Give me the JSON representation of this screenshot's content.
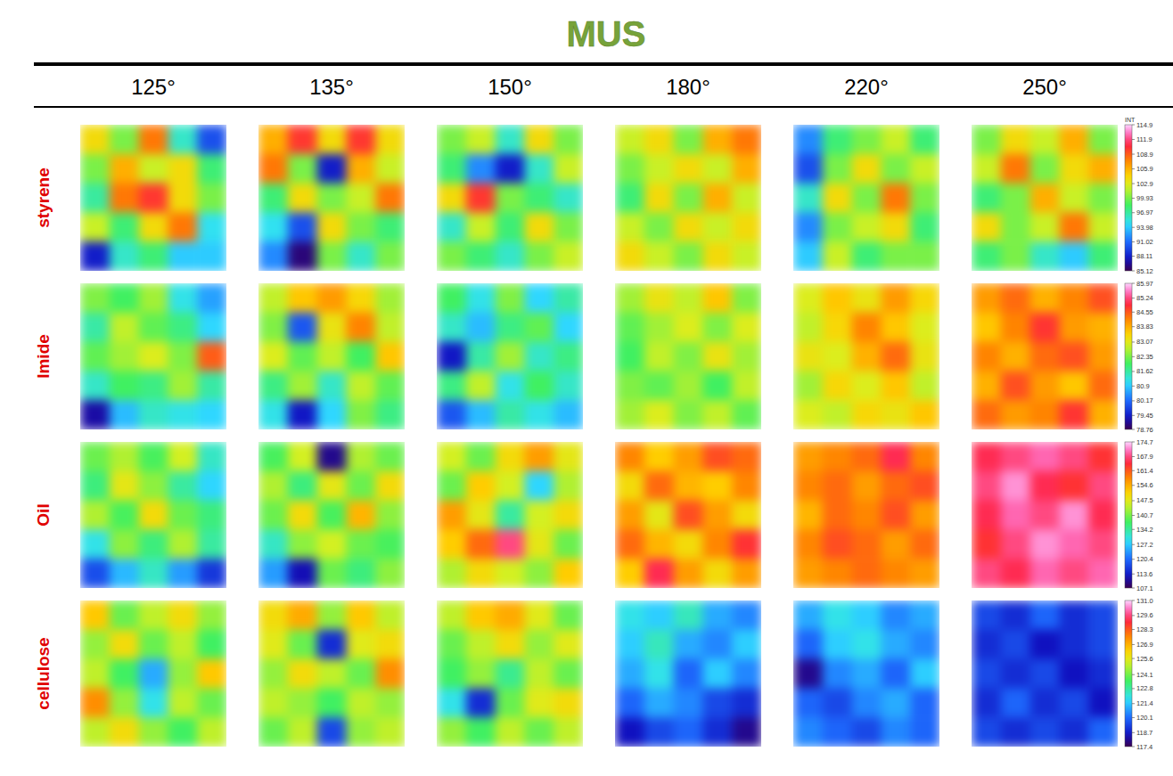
{
  "chart_data": {
    "type": "heatmap",
    "title": "MUS",
    "columns": [
      "125°",
      "135°",
      "150°",
      "180°",
      "220°",
      "250°"
    ],
    "rows": [
      {
        "name": "styrene",
        "colorbar": {
          "label": "INT",
          "range": [
            85.12,
            114.9
          ],
          "ticks": [
            114.9,
            111.9,
            108.9,
            105.9,
            102.9,
            99.93,
            96.97,
            93.98,
            91.02,
            88.11,
            85.12
          ]
        },
        "cells": [
          [
            [
              104,
              100,
              108,
              96,
              90
            ],
            [
              100,
              106,
              102,
              104,
              98
            ],
            [
              97,
              108,
              110,
              104,
              100
            ],
            [
              102,
              98,
              104,
              108,
              95
            ],
            [
              88,
              96,
              98,
              94,
              94
            ]
          ],
          [
            [
              106,
              110,
              104,
              110,
              104
            ],
            [
              108,
              100,
              88,
              106,
              102
            ],
            [
              98,
              104,
              100,
              102,
              108
            ],
            [
              95,
              90,
              104,
              100,
              98
            ],
            [
              92,
              86,
              100,
              96,
              100
            ]
          ],
          [
            [
              100,
              102,
              96,
              104,
              100
            ],
            [
              98,
              92,
              88,
              96,
              102
            ],
            [
              104,
              110,
              100,
              98,
              96
            ],
            [
              96,
              102,
              98,
              104,
              100
            ],
            [
              100,
              98,
              96,
              100,
              102
            ]
          ],
          [
            [
              102,
              104,
              100,
              106,
              108
            ],
            [
              100,
              102,
              104,
              102,
              106
            ],
            [
              98,
              104,
              100,
              106,
              102
            ],
            [
              102,
              100,
              104,
              102,
              104
            ],
            [
              104,
              102,
              100,
              104,
              102
            ]
          ],
          [
            [
              92,
              98,
              100,
              102,
              98
            ],
            [
              90,
              100,
              104,
              100,
              102
            ],
            [
              96,
              104,
              100,
              108,
              100
            ],
            [
              92,
              100,
              102,
              104,
              98
            ],
            [
              94,
              102,
              98,
              100,
              100
            ]
          ],
          [
            [
              100,
              104,
              102,
              106,
              100
            ],
            [
              102,
              108,
              100,
              104,
              106
            ],
            [
              98,
              100,
              106,
              102,
              100
            ],
            [
              104,
              100,
              102,
              108,
              102
            ],
            [
              98,
              100,
              96,
              94,
              98
            ]
          ]
        ]
      },
      {
        "name": "Imide",
        "colorbar": {
          "range": [
            78.76,
            85.97
          ],
          "ticks": [
            85.97,
            85.24,
            84.55,
            83.83,
            83.07,
            82.35,
            81.62,
            80.9,
            80.17,
            79.45,
            78.76
          ]
        },
        "cells": [
          [
            [
              82.4,
              82.0,
              82.6,
              81.2,
              80.6
            ],
            [
              81.6,
              82.8,
              82.2,
              81.8,
              81.0
            ],
            [
              82.2,
              82.6,
              83.0,
              82.4,
              84.5
            ],
            [
              81.4,
              82.0,
              81.8,
              82.6,
              81.6
            ],
            [
              79.2,
              80.8,
              81.4,
              81.2,
              81.0
            ]
          ],
          [
            [
              82.8,
              83.6,
              84.0,
              83.4,
              82.6
            ],
            [
              82.4,
              80.0,
              83.2,
              84.2,
              82.8
            ],
            [
              83.0,
              82.2,
              82.8,
              82.0,
              83.6
            ],
            [
              81.8,
              82.6,
              81.4,
              82.8,
              82.2
            ],
            [
              81.2,
              79.4,
              81.0,
              82.4,
              81.8
            ]
          ],
          [
            [
              82.0,
              81.2,
              82.4,
              81.0,
              81.6
            ],
            [
              81.4,
              80.8,
              81.8,
              82.2,
              81.0
            ],
            [
              79.4,
              81.6,
              82.6,
              81.4,
              81.8
            ],
            [
              81.8,
              82.8,
              81.2,
              82.0,
              81.4
            ],
            [
              80.0,
              80.8,
              81.6,
              81.2,
              80.8
            ]
          ],
          [
            [
              82.6,
              83.2,
              82.8,
              83.6,
              82.4
            ],
            [
              82.2,
              82.6,
              83.0,
              82.4,
              83.0
            ],
            [
              82.0,
              82.8,
              82.4,
              83.2,
              82.6
            ],
            [
              82.4,
              82.2,
              82.6,
              82.0,
              82.8
            ],
            [
              82.6,
              83.0,
              82.4,
              82.8,
              82.2
            ]
          ],
          [
            [
              83.0,
              83.6,
              83.2,
              84.0,
              83.4
            ],
            [
              82.8,
              83.4,
              84.2,
              83.6,
              83.0
            ],
            [
              83.2,
              83.0,
              83.8,
              84.4,
              83.2
            ],
            [
              82.6,
              83.4,
              83.0,
              83.6,
              82.8
            ],
            [
              83.0,
              82.8,
              83.4,
              83.2,
              83.6
            ]
          ],
          [
            [
              84.0,
              84.4,
              83.8,
              84.2,
              84.6
            ],
            [
              83.6,
              84.2,
              84.8,
              84.0,
              83.8
            ],
            [
              84.2,
              83.8,
              84.4,
              84.6,
              84.0
            ],
            [
              83.8,
              84.6,
              84.0,
              83.6,
              84.4
            ],
            [
              84.4,
              84.0,
              84.2,
              84.8,
              83.8
            ]
          ]
        ]
      },
      {
        "name": "Oil",
        "colorbar": {
          "range": [
            107.1,
            174.7
          ],
          "ticks": [
            174.7,
            167.9,
            161.4,
            154.6,
            147.5,
            140.7,
            134.2,
            127.2,
            120.4,
            113.6,
            107.1
          ]
        },
        "cells": [
          [
            [
              140,
              144,
              138,
              146,
              132
            ],
            [
              136,
              148,
              142,
              134,
              128
            ],
            [
              144,
              138,
              150,
              140,
              136
            ],
            [
              130,
              142,
              136,
              144,
              134
            ],
            [
              118,
              126,
              132,
              124,
              116
            ]
          ],
          [
            [
              138,
              146,
              110,
              144,
              140
            ],
            [
              144,
              136,
              148,
              140,
              150
            ],
            [
              140,
              150,
              138,
              154,
              142
            ],
            [
              132,
              142,
              146,
              140,
              138
            ],
            [
              124,
              112,
              140,
              136,
              142
            ]
          ],
          [
            [
              146,
              140,
              150,
              156,
              148
            ],
            [
              140,
              152,
              146,
              128,
              144
            ],
            [
              156,
              148,
              134,
              146,
              150
            ],
            [
              152,
              160,
              168,
              148,
              140
            ],
            [
              144,
              150,
              146,
              142,
              152
            ]
          ],
          [
            [
              158,
              152,
              156,
              162,
              160
            ],
            [
              150,
              160,
              154,
              152,
              158
            ],
            [
              156,
              148,
              162,
              156,
              150
            ],
            [
              160,
              154,
              150,
              158,
              164
            ],
            [
              152,
              166,
              156,
              150,
              156
            ]
          ],
          [
            [
              156,
              158,
              160,
              166,
              158
            ],
            [
              158,
              160,
              156,
              160,
              162
            ],
            [
              154,
              160,
              158,
              162,
              156
            ],
            [
              158,
              162,
              160,
              156,
              160
            ],
            [
              156,
              158,
              160,
              158,
              156
            ]
          ],
          [
            [
              166,
              168,
              170,
              168,
              164
            ],
            [
              168,
              172,
              166,
              164,
              168
            ],
            [
              166,
              170,
              168,
              172,
              166
            ],
            [
              164,
              168,
              172,
              170,
              168
            ],
            [
              168,
              166,
              170,
              168,
              170
            ]
          ]
        ]
      },
      {
        "name": "cellulose",
        "colorbar": {
          "range": [
            117.4,
            131
          ],
          "ticks": [
            {
              "value": 131,
              "label": "131.0"
            },
            129.6,
            128.3,
            126.9,
            125.6,
            124.1,
            122.8,
            121.4,
            120.1,
            118.7,
            117.4
          ]
        },
        "cells": [
          [
            [
              126.5,
              124.0,
              125.0,
              126.0,
              124.5
            ],
            [
              124.5,
              126.0,
              124.0,
              125.0,
              123.5
            ],
            [
              125.0,
              123.5,
              121.0,
              124.5,
              126.5
            ],
            [
              127.5,
              124.5,
              122.0,
              125.0,
              124.0
            ],
            [
              125.0,
              126.0,
              124.5,
              123.5,
              125.0
            ]
          ],
          [
            [
              126.0,
              127.0,
              124.5,
              126.5,
              125.0
            ],
            [
              125.5,
              124.0,
              119.0,
              125.5,
              126.0
            ],
            [
              124.5,
              126.0,
              125.0,
              124.0,
              127.5
            ],
            [
              125.0,
              124.5,
              123.5,
              125.0,
              124.5
            ],
            [
              124.0,
              125.0,
              119.5,
              124.5,
              125.0
            ]
          ],
          [
            [
              125.0,
              126.5,
              127.0,
              125.5,
              124.0
            ],
            [
              124.0,
              125.0,
              126.0,
              124.5,
              125.5
            ],
            [
              123.5,
              124.5,
              123.0,
              125.0,
              124.0
            ],
            [
              122.0,
              119.0,
              124.0,
              125.5,
              126.0
            ],
            [
              124.5,
              123.5,
              125.0,
              124.0,
              125.0
            ]
          ],
          [
            [
              122.0,
              121.5,
              122.5,
              121.0,
              120.5
            ],
            [
              121.5,
              122.5,
              121.0,
              120.5,
              121.5
            ],
            [
              121.0,
              122.0,
              120.0,
              121.5,
              120.5
            ],
            [
              120.0,
              121.0,
              120.5,
              119.5,
              119.0
            ],
            [
              118.5,
              119.5,
              120.0,
              119.0,
              118.0
            ]
          ],
          [
            [
              121.0,
              122.0,
              121.5,
              120.5,
              121.0
            ],
            [
              120.0,
              121.5,
              122.0,
              121.0,
              120.5
            ],
            [
              118.0,
              120.5,
              121.0,
              120.0,
              121.5
            ],
            [
              120.0,
              119.5,
              120.5,
              121.0,
              120.0
            ],
            [
              120.5,
              120.0,
              119.5,
              120.5,
              120.0
            ]
          ],
          [
            [
              119.5,
              119.0,
              120.0,
              119.0,
              119.5
            ],
            [
              119.0,
              119.5,
              118.5,
              119.0,
              119.5
            ],
            [
              119.5,
              119.0,
              119.5,
              118.5,
              119.0
            ],
            [
              119.0,
              120.0,
              119.0,
              119.5,
              118.5
            ],
            [
              119.5,
              119.0,
              119.5,
              119.0,
              120.0
            ]
          ]
        ]
      }
    ]
  }
}
